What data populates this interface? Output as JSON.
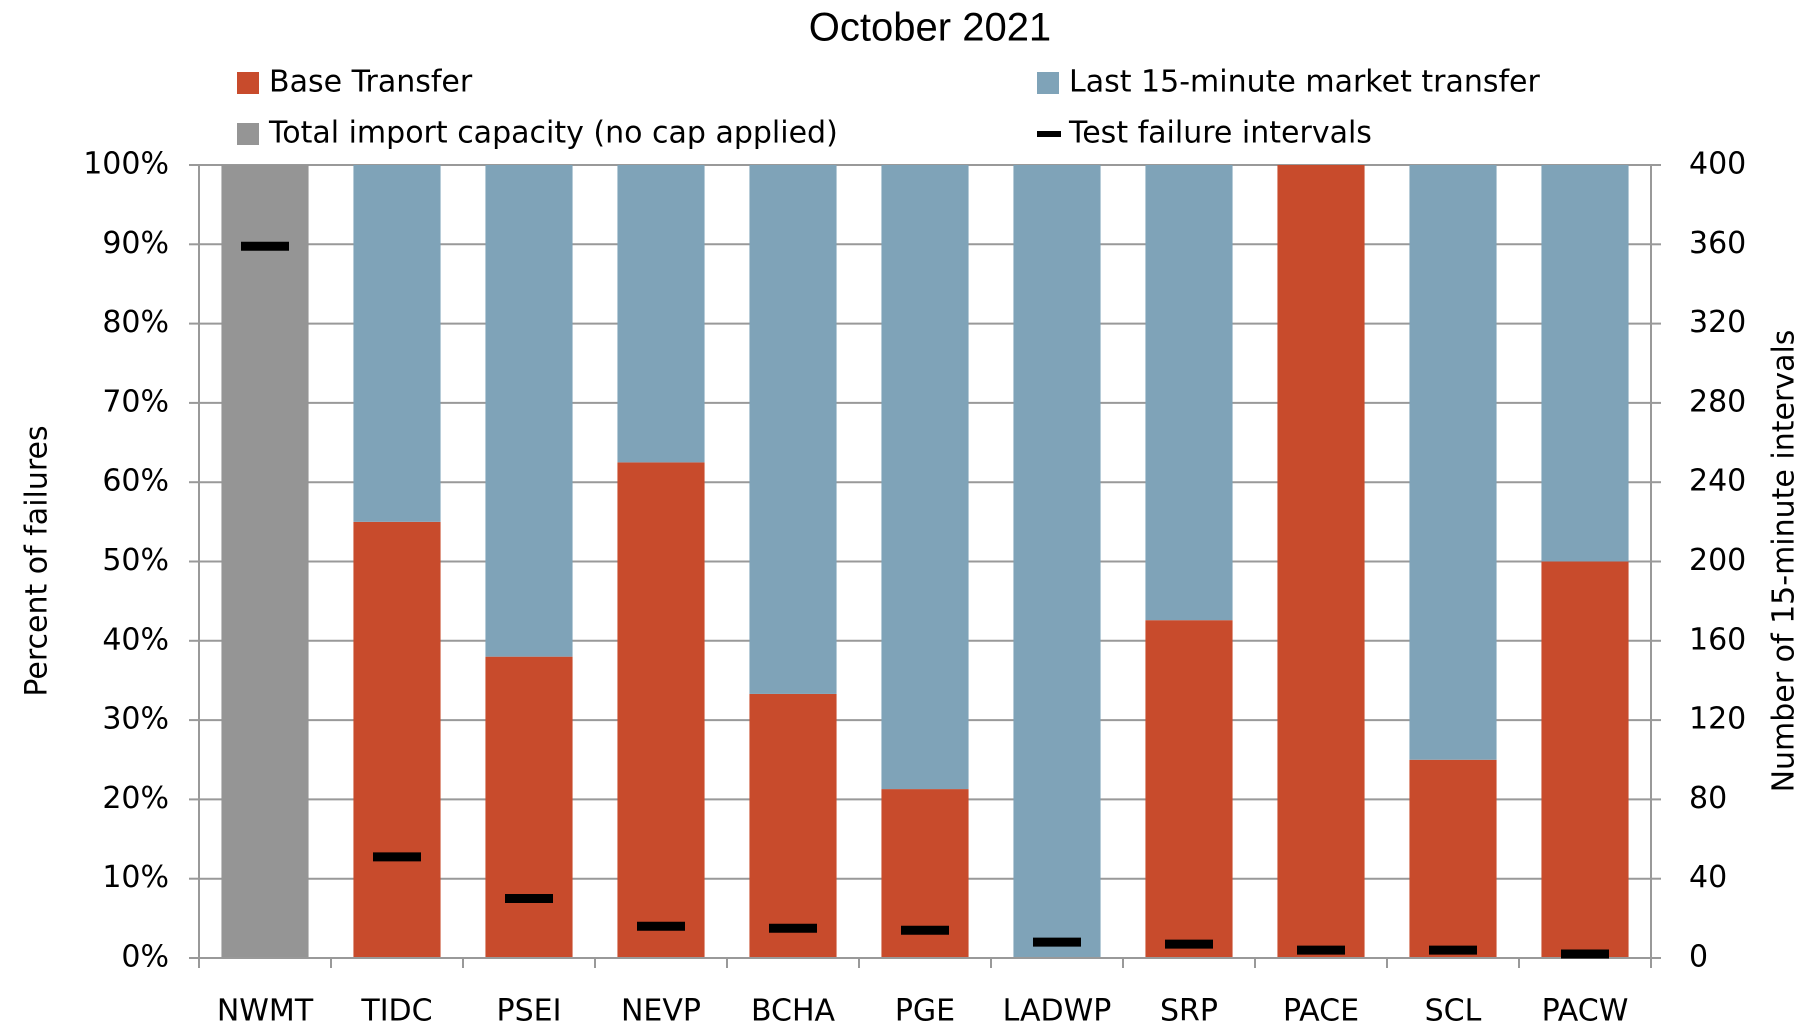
{
  "chart_data": {
    "type": "bar",
    "stacked": true,
    "title": "October 2021",
    "categories": [
      "NWMT",
      "TIDC",
      "PSEI",
      "NEVP",
      "BCHA",
      "PGE",
      "LADWP",
      "SRP",
      "PACE",
      "SCL",
      "PACW"
    ],
    "series": [
      {
        "name": "Base Transfer",
        "color": "#c84b2c",
        "values": [
          0,
          55,
          38,
          62.5,
          33.3,
          21.3,
          0,
          42.6,
          100,
          25,
          50
        ]
      },
      {
        "name": "Last 15-minute market transfer",
        "color": "#7fa3b8",
        "values": [
          0,
          45,
          62,
          37.5,
          66.7,
          78.7,
          100,
          57.4,
          0,
          75,
          50
        ]
      },
      {
        "name": "Total import capacity (no cap applied)",
        "color": "#959595",
        "values": [
          100,
          0,
          0,
          0,
          0,
          0,
          0,
          0,
          0,
          0,
          0
        ]
      },
      {
        "name": "Test failure intervals",
        "color": "#000000",
        "type": "marker",
        "axis": "y2",
        "values": [
          359,
          51,
          30,
          16,
          15,
          14,
          8,
          7,
          4,
          4,
          2
        ]
      }
    ],
    "y_label": "Percent of failures",
    "y2_label": "Number of 15-minute intervals",
    "ylim": [
      0,
      100
    ],
    "yticks": [
      {
        "value": 0,
        "label": "0%"
      },
      {
        "value": 10,
        "label": "10%"
      },
      {
        "value": 20,
        "label": "20%"
      },
      {
        "value": 30,
        "label": "30%"
      },
      {
        "value": 40,
        "label": "40%"
      },
      {
        "value": 50,
        "label": "50%"
      },
      {
        "value": 60,
        "label": "60%"
      },
      {
        "value": 70,
        "label": "70%"
      },
      {
        "value": 80,
        "label": "80%"
      },
      {
        "value": 90,
        "label": "90%"
      },
      {
        "value": 100,
        "label": "100%"
      }
    ],
    "y2lim": [
      0,
      400
    ],
    "y2ticks": [
      0,
      40,
      80,
      120,
      160,
      200,
      240,
      280,
      320,
      360,
      400
    ],
    "grid": true,
    "legend": "top"
  }
}
